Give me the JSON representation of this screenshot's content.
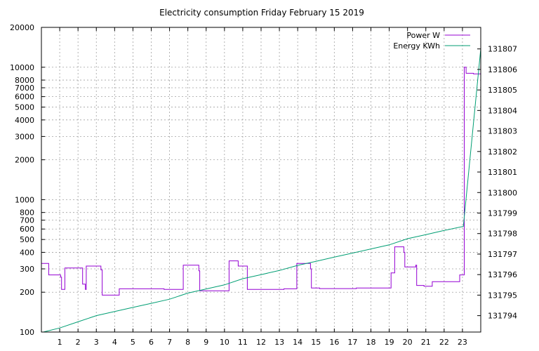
{
  "chart_data": {
    "type": "line",
    "title": "Electricity consumption Friday February 15 2019",
    "x_ticks": [
      "1",
      "2",
      "3",
      "4",
      "5",
      "6",
      "7",
      "8",
      "9",
      "10",
      "11",
      "12",
      "13",
      "14",
      "15",
      "16",
      "17",
      "18",
      "19",
      "20",
      "21",
      "22",
      "23"
    ],
    "xlim": [
      0,
      24
    ],
    "y_left": {
      "scale": "log",
      "ylim": [
        100,
        20000
      ],
      "ticks": [
        100,
        200,
        300,
        400,
        500,
        600,
        700,
        800,
        1000,
        2000,
        3000,
        4000,
        5000,
        6000,
        7000,
        8000,
        10000,
        20000
      ]
    },
    "y_right": {
      "scale": "linear",
      "ylim": [
        131793.2,
        131808.05
      ],
      "ticks": [
        131794,
        131795,
        131796,
        131797,
        131798,
        131799,
        131800,
        131801,
        131802,
        131803,
        131804,
        131805,
        131806,
        131807
      ]
    },
    "grid": true,
    "legend_position": "top-right",
    "series": [
      {
        "name": "Power W",
        "color": "#9400d3",
        "axis": "left",
        "step": true,
        "points": [
          [
            0,
            330
          ],
          [
            0.4,
            270
          ],
          [
            1.05,
            260
          ],
          [
            1.1,
            210
          ],
          [
            1.28,
            305
          ],
          [
            2.2,
            305
          ],
          [
            2.25,
            230
          ],
          [
            2.4,
            210
          ],
          [
            2.45,
            315
          ],
          [
            3.25,
            295
          ],
          [
            3.32,
            190
          ],
          [
            4.2,
            190
          ],
          [
            4.25,
            212
          ],
          [
            6.7,
            210
          ],
          [
            7.7,
            210
          ],
          [
            7.75,
            320
          ],
          [
            8.6,
            290
          ],
          [
            8.65,
            205
          ],
          [
            10.15,
            205
          ],
          [
            10.25,
            345
          ],
          [
            10.75,
            315
          ],
          [
            11.25,
            210
          ],
          [
            12.9,
            210
          ],
          [
            13.25,
            212
          ],
          [
            13.9,
            212
          ],
          [
            13.95,
            330
          ],
          [
            14.7,
            300
          ],
          [
            14.75,
            215
          ],
          [
            15.2,
            213
          ],
          [
            17.15,
            213
          ],
          [
            17.2,
            215
          ],
          [
            19.05,
            215
          ],
          [
            19.1,
            280
          ],
          [
            19.3,
            440
          ],
          [
            19.8,
            400
          ],
          [
            19.85,
            310
          ],
          [
            20.45,
            320
          ],
          [
            20.5,
            225
          ],
          [
            20.9,
            222
          ],
          [
            21.2,
            222
          ],
          [
            21.35,
            240
          ],
          [
            22.8,
            240
          ],
          [
            22.85,
            270
          ],
          [
            23.05,
            270
          ],
          [
            23.1,
            10000
          ],
          [
            23.2,
            9000
          ],
          [
            23.5,
            9000
          ],
          [
            23.6,
            8900
          ],
          [
            24,
            8900
          ]
        ]
      },
      {
        "name": "Energy KWh",
        "color": "#009e73",
        "axis": "right",
        "step": false,
        "points": [
          [
            0.1,
            131793.2
          ],
          [
            1,
            131793.4
          ],
          [
            2,
            131793.7
          ],
          [
            3,
            131794.0
          ],
          [
            4,
            131794.2
          ],
          [
            5,
            131794.4
          ],
          [
            6,
            131794.6
          ],
          [
            7,
            131794.8
          ],
          [
            8,
            131795.1
          ],
          [
            9,
            131795.3
          ],
          [
            10,
            131795.5
          ],
          [
            11,
            131795.8
          ],
          [
            12,
            131796.0
          ],
          [
            13,
            131796.2
          ],
          [
            14,
            131796.45
          ],
          [
            15,
            131796.65
          ],
          [
            16,
            131796.85
          ],
          [
            17,
            131797.05
          ],
          [
            18,
            131797.25
          ],
          [
            19,
            131797.45
          ],
          [
            20,
            131797.75
          ],
          [
            21,
            131797.95
          ],
          [
            22,
            131798.15
          ],
          [
            23.05,
            131798.35
          ],
          [
            24,
            131807.0
          ]
        ]
      }
    ]
  }
}
